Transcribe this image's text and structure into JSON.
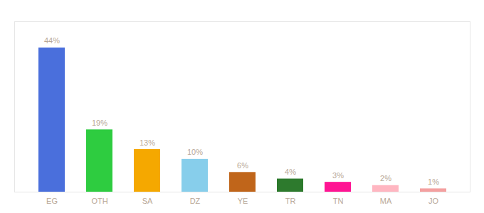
{
  "chart_data": {
    "type": "bar",
    "categories": [
      "EG",
      "OTH",
      "SA",
      "DZ",
      "YE",
      "TR",
      "TN",
      "MA",
      "JO"
    ],
    "values": [
      44,
      19,
      13,
      10,
      6,
      4,
      3,
      2,
      1
    ],
    "value_labels": [
      "44%",
      "19%",
      "13%",
      "10%",
      "6%",
      "4%",
      "3%",
      "2%",
      "1%"
    ],
    "colors": [
      "#4a6fdc",
      "#2ecc40",
      "#f5a800",
      "#87ceeb",
      "#c0651a",
      "#2d7a2d",
      "#ff1493",
      "#ffb6c1",
      "#f4a0a0"
    ],
    "ylim": [
      0,
      52
    ],
    "data_labels": true,
    "tick_labels": "x"
  }
}
